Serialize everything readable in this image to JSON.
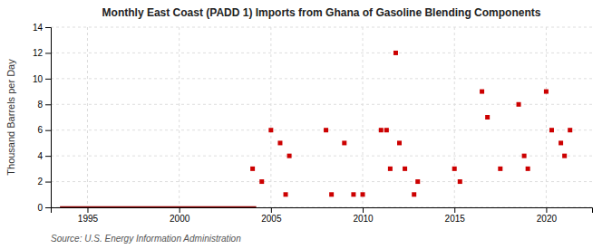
{
  "chart_data": {
    "type": "scatter",
    "title": "Monthly East Coast (PADD 1) Imports from Ghana of Gasoline Blending Components",
    "ylabel": "Thousand Barrels per Day",
    "source": "Source: U.S. Energy Information Administration",
    "xlim": [
      1993,
      2022.5
    ],
    "ylim": [
      0,
      14
    ],
    "xticks": [
      1995,
      2000,
      2005,
      2010,
      2015,
      2020
    ],
    "yticks": [
      0,
      2,
      4,
      6,
      8,
      10,
      12,
      14
    ],
    "grid": true,
    "series": [
      {
        "type": "line",
        "color": "#8b0000",
        "line_style": "solid",
        "x": [
          1993.5,
          2004.2
        ],
        "values": [
          0,
          0
        ]
      },
      {
        "type": "scatter",
        "color": "#cc0000",
        "marker": "square",
        "x": [
          2004.0,
          2004.5,
          2005.0,
          2005.5,
          2005.8,
          2006.0,
          2008.0,
          2008.3,
          2009.0,
          2009.5,
          2010.0,
          2011.0,
          2011.3,
          2011.5,
          2011.8,
          2012.0,
          2012.3,
          2012.8,
          2013.0,
          2015.0,
          2015.3,
          2016.5,
          2016.8,
          2017.5,
          2018.5,
          2018.8,
          2019.0,
          2020.0,
          2020.3,
          2020.8,
          2021.0,
          2021.3
        ],
        "values": [
          3,
          2,
          6,
          5,
          1,
          4,
          6,
          1,
          5,
          1,
          1,
          6,
          6,
          3,
          12,
          5,
          3,
          1,
          2,
          3,
          2,
          9,
          7,
          3,
          8,
          4,
          3,
          9,
          6,
          5,
          4,
          6
        ]
      }
    ]
  }
}
